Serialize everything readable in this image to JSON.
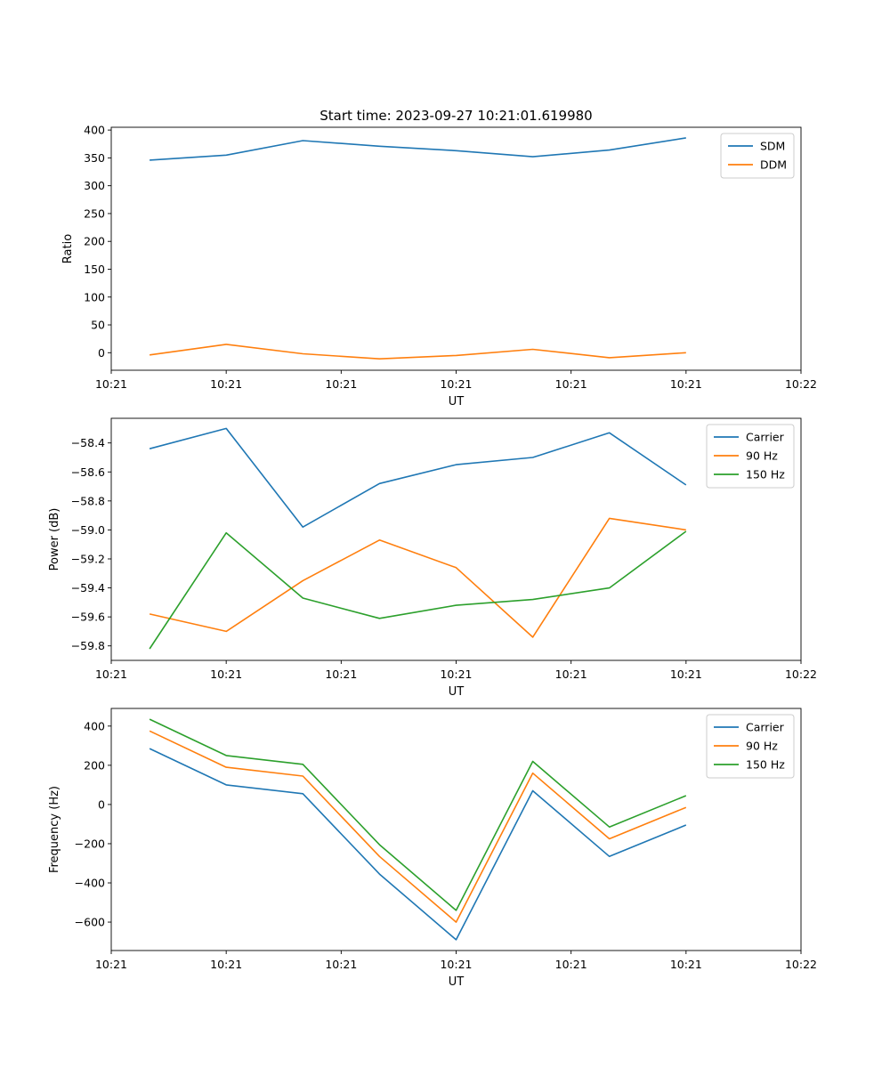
{
  "colors": {
    "c0": "#1f77b4",
    "c1": "#ff7f0e",
    "c2": "#2ca02c"
  },
  "chart_data": [
    {
      "type": "line",
      "title": "Start time: 2023-09-27 10:21:01.619980",
      "xlabel": "UT",
      "ylabel": "Ratio",
      "xlim": [
        0,
        9
      ],
      "ylim": [
        -31.5,
        405
      ],
      "x": [
        0.5,
        1.5,
        2.5,
        3.5,
        4.5,
        5.5,
        6.5,
        7.5
      ],
      "xticks": [
        0,
        1.5,
        3,
        4.5,
        6,
        7.5,
        9
      ],
      "xtick_labels": [
        "10:21",
        "10:21",
        "10:21",
        "10:21",
        "10:21",
        "10:21",
        "10:22"
      ],
      "yticks": [
        0,
        50,
        100,
        150,
        200,
        250,
        300,
        350,
        400
      ],
      "ytick_labels": [
        "0",
        "50",
        "100",
        "150",
        "200",
        "250",
        "300",
        "350",
        "400"
      ],
      "legend_position": "top-right",
      "series": [
        {
          "name": "SDM",
          "values": [
            346,
            355,
            381,
            371,
            363,
            352,
            364,
            386
          ]
        },
        {
          "name": "DDM",
          "values": [
            -4,
            15,
            -2,
            -11,
            -5,
            6,
            -9,
            0
          ]
        }
      ]
    },
    {
      "type": "line",
      "title": "",
      "xlabel": "UT",
      "ylabel": "Power (dB)",
      "xlim": [
        0,
        9
      ],
      "ylim": [
        -59.9,
        -58.23
      ],
      "x": [
        0.5,
        1.5,
        2.5,
        3.5,
        4.5,
        5.5,
        6.5,
        7.5
      ],
      "xticks": [
        0,
        1.5,
        3,
        4.5,
        6,
        7.5,
        9
      ],
      "xtick_labels": [
        "10:21",
        "10:21",
        "10:21",
        "10:21",
        "10:21",
        "10:21",
        "10:22"
      ],
      "yticks": [
        -59.8,
        -59.6,
        -59.4,
        -59.2,
        -59.0,
        -58.8,
        -58.6,
        -58.4
      ],
      "ytick_labels": [
        "−59.8",
        "−59.6",
        "−59.4",
        "−59.2",
        "−59.0",
        "−58.8",
        "−58.6",
        "−58.4"
      ],
      "legend_position": "top-right",
      "series": [
        {
          "name": "Carrier",
          "values": [
            -58.44,
            -58.3,
            -58.98,
            -58.68,
            -58.55,
            -58.5,
            -58.33,
            -58.69
          ]
        },
        {
          "name": "90 Hz",
          "values": [
            -59.58,
            -59.7,
            -59.35,
            -59.07,
            -59.26,
            -59.74,
            -58.92,
            -59.0
          ]
        },
        {
          "name": "150 Hz",
          "values": [
            -59.82,
            -59.02,
            -59.47,
            -59.61,
            -59.52,
            -59.48,
            -59.4,
            -59.01
          ]
        }
      ]
    },
    {
      "type": "line",
      "title": "",
      "xlabel": "UT",
      "ylabel": "Frequency (Hz)",
      "xlim": [
        0,
        9
      ],
      "ylim": [
        -745,
        490
      ],
      "x": [
        0.5,
        1.5,
        2.5,
        3.5,
        4.5,
        5.5,
        6.5,
        7.5
      ],
      "xticks": [
        0,
        1.5,
        3,
        4.5,
        6,
        7.5,
        9
      ],
      "xtick_labels": [
        "10:21",
        "10:21",
        "10:21",
        "10:21",
        "10:21",
        "10:21",
        "10:22"
      ],
      "yticks": [
        -600,
        -400,
        -200,
        0,
        200,
        400
      ],
      "ytick_labels": [
        "−600",
        "−400",
        "−200",
        "0",
        "200",
        "400"
      ],
      "legend_position": "top-right",
      "series": [
        {
          "name": "Carrier",
          "values": [
            285,
            100,
            55,
            -355,
            -690,
            70,
            -265,
            -105
          ]
        },
        {
          "name": "90 Hz",
          "values": [
            375,
            190,
            145,
            -265,
            -600,
            160,
            -175,
            -15
          ]
        },
        {
          "name": "150 Hz",
          "values": [
            435,
            250,
            205,
            -205,
            -540,
            220,
            -115,
            45
          ]
        }
      ]
    }
  ]
}
